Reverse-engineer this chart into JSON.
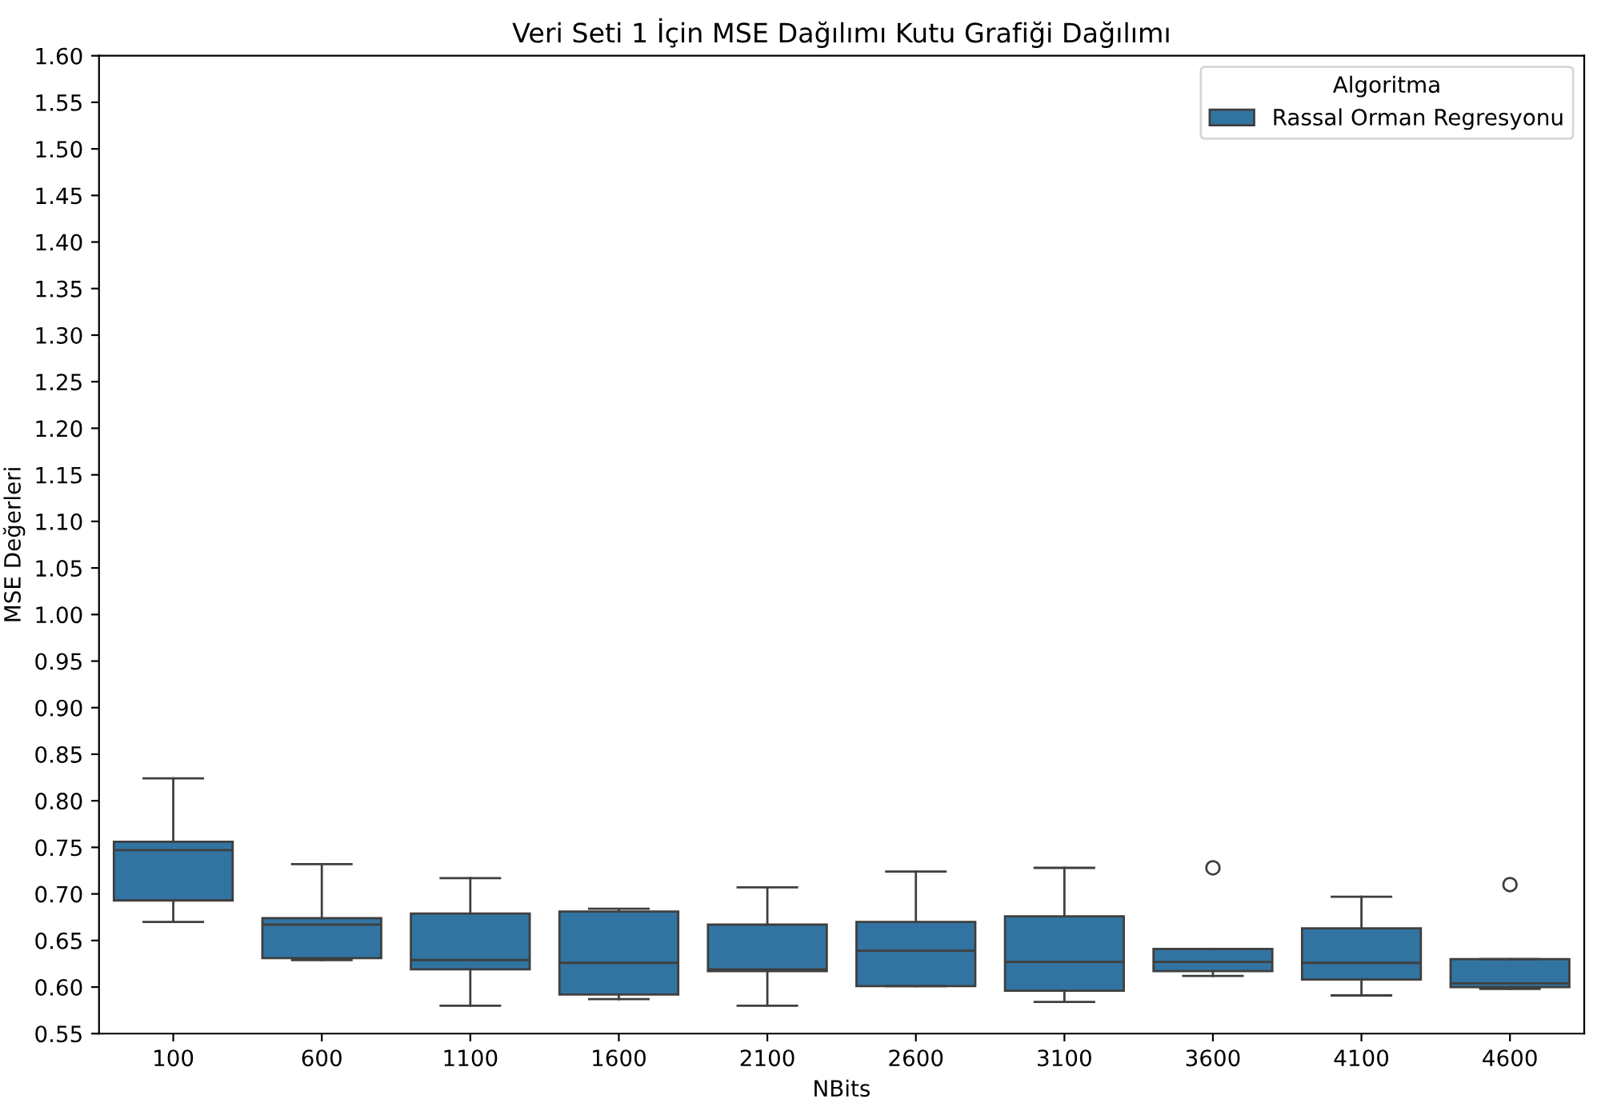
{
  "chart_data": {
    "type": "box",
    "title": "Veri Seti 1 İçin MSE Dağılımı Kutu Grafiği Dağılımı",
    "xlabel": "NBits",
    "ylabel": "MSE Değerleri",
    "legend_title": "Algoritma",
    "legend": "top right",
    "grid": false,
    "categories": [
      "100",
      "600",
      "1100",
      "1600",
      "2100",
      "2600",
      "3100",
      "3600",
      "4100",
      "4600"
    ],
    "ylim": [
      0.55,
      1.6
    ],
    "yticks": [
      0.55,
      {
        "value": 0.6,
        "label": "0.60"
      },
      0.65,
      {
        "value": 0.7,
        "label": "0.70"
      },
      0.75,
      {
        "value": 0.8,
        "label": "0.80"
      },
      0.85,
      {
        "value": 0.9,
        "label": "0.90"
      },
      0.95,
      {
        "value": 1.0,
        "label": "1.00"
      },
      1.05,
      {
        "value": 1.1,
        "label": "1.10"
      },
      1.15,
      {
        "value": 1.2,
        "label": "1.20"
      },
      1.25,
      {
        "value": 1.3,
        "label": "1.30"
      },
      1.35,
      {
        "value": 1.4,
        "label": "1.40"
      },
      1.45,
      {
        "value": 1.5,
        "label": "1.50"
      },
      1.55,
      {
        "value": 1.6,
        "label": "1.60"
      }
    ],
    "series": [
      {
        "name": "Rassal Orman Regresyonu",
        "color": "#3274a1",
        "boxes": [
          {
            "low": 0.67,
            "q1": 0.693,
            "median": 0.747,
            "q3": 0.756,
            "high": 0.824
          },
          {
            "low": 0.629,
            "q1": 0.631,
            "median": 0.667,
            "q3": 0.674,
            "high": 0.732
          },
          {
            "low": 0.58,
            "q1": 0.619,
            "median": 0.629,
            "q3": 0.679,
            "high": 0.717
          },
          {
            "low": 0.587,
            "q1": 0.592,
            "median": 0.626,
            "q3": 0.681,
            "high": 0.684
          },
          {
            "low": 0.58,
            "q1": 0.617,
            "median": 0.619,
            "q3": 0.667,
            "high": 0.707
          },
          {
            "low": 0.601,
            "q1": 0.601,
            "median": 0.639,
            "q3": 0.67,
            "high": 0.724
          },
          {
            "low": 0.584,
            "q1": 0.596,
            "median": 0.627,
            "q3": 0.676,
            "high": 0.728
          },
          {
            "low": 0.612,
            "q1": 0.617,
            "median": 0.627,
            "q3": 0.641,
            "high": 0.641,
            "outliers": [
              0.728
            ]
          },
          {
            "low": 0.591,
            "q1": 0.608,
            "median": 0.626,
            "q3": 0.663,
            "high": 0.697
          },
          {
            "low": 0.598,
            "q1": 0.6,
            "median": 0.604,
            "q3": 0.63,
            "high": 0.63,
            "outliers": [
              0.71
            ]
          }
        ]
      }
    ]
  }
}
